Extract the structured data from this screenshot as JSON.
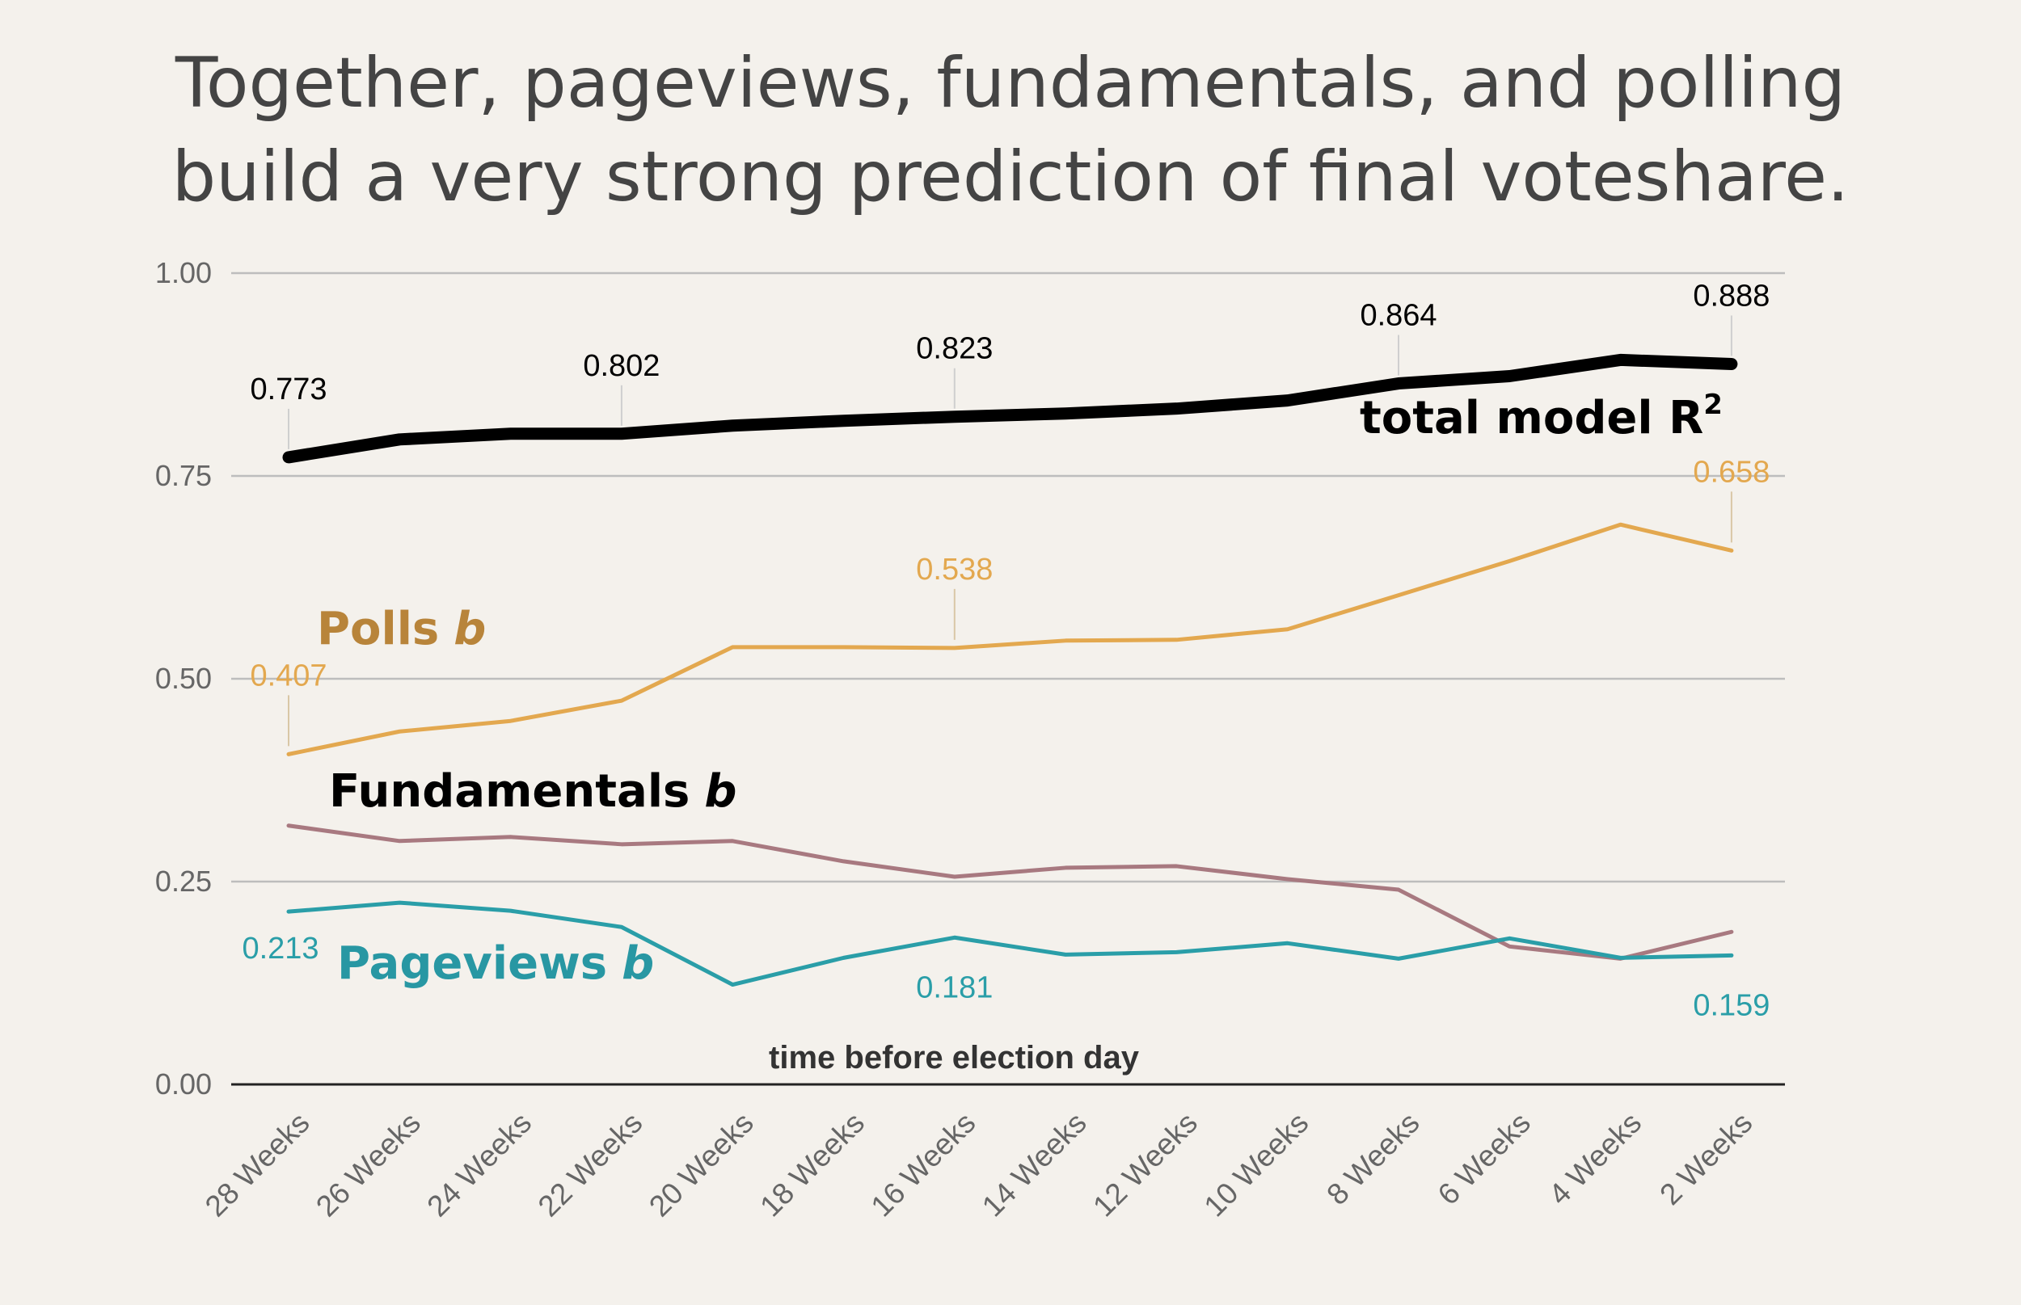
{
  "title_line1": "Together, pageviews, fundamentals, and polling",
  "title_line2": "build a very strong prediction of final voteshare.",
  "chart_data": {
    "type": "line",
    "xlabel": "time before election day",
    "ylabel": "",
    "ylim": [
      0,
      1
    ],
    "yticks": [
      "0.00",
      "0.25",
      "0.50",
      "0.75",
      "1.00"
    ],
    "ytick_values": [
      0,
      0.25,
      0.5,
      0.75,
      1.0
    ],
    "grid": true,
    "categories": [
      "28 Weeks",
      "26 Weeks",
      "24 Weeks",
      "22 Weeks",
      "20 Weeks",
      "18 Weeks",
      "16 Weeks",
      "14 Weeks",
      "12 Weeks",
      "10 Weeks",
      "8 Weeks",
      "6 Weeks",
      "4 Weeks",
      "2 Weeks"
    ],
    "series": [
      {
        "key": "total",
        "label_main": "total model R",
        "label_sup": "2",
        "color": "#000000",
        "values": [
          0.773,
          0.795,
          0.802,
          0.802,
          0.812,
          0.818,
          0.823,
          0.827,
          0.833,
          0.843,
          0.864,
          0.873,
          0.893,
          0.888
        ],
        "labels": [
          {
            "i": 0,
            "text": "0.773"
          },
          {
            "i": 3,
            "text": "0.802"
          },
          {
            "i": 6,
            "text": "0.823"
          },
          {
            "i": 10,
            "text": "0.864"
          },
          {
            "i": 13,
            "text": "0.888"
          }
        ]
      },
      {
        "key": "polls",
        "label_main": "Polls",
        "label_b": "b",
        "color": "#e3a84f",
        "label_color": "#b8843a",
        "values": [
          0.407,
          0.435,
          0.448,
          0.473,
          0.539,
          0.539,
          0.538,
          0.547,
          0.548,
          0.561,
          0.603,
          0.645,
          0.69,
          0.658
        ],
        "labels": [
          {
            "i": 0,
            "text": "0.407"
          },
          {
            "i": 6,
            "text": "0.538"
          },
          {
            "i": 13,
            "text": "0.658"
          }
        ]
      },
      {
        "key": "fundamentals",
        "label_main": "Fundamentals",
        "label_b": "b",
        "color": "#a87980",
        "label_color": "#9e6e76",
        "values": [
          0.319,
          0.3,
          0.305,
          0.296,
          0.3,
          0.275,
          0.256,
          0.267,
          0.269,
          0.253,
          0.24,
          0.17,
          0.155,
          0.188
        ],
        "labels": []
      },
      {
        "key": "pageviews",
        "label_main": "Pageviews",
        "label_b": "b",
        "color": "#2a9ea8",
        "label_color": "#2897a3",
        "values": [
          0.213,
          0.224,
          0.214,
          0.194,
          0.123,
          0.156,
          0.181,
          0.16,
          0.163,
          0.174,
          0.155,
          0.18,
          0.156,
          0.159
        ],
        "labels": [
          {
            "i": 0,
            "text": "0.213"
          },
          {
            "i": 6,
            "text": "0.181"
          },
          {
            "i": 13,
            "text": "0.159"
          }
        ]
      }
    ]
  }
}
